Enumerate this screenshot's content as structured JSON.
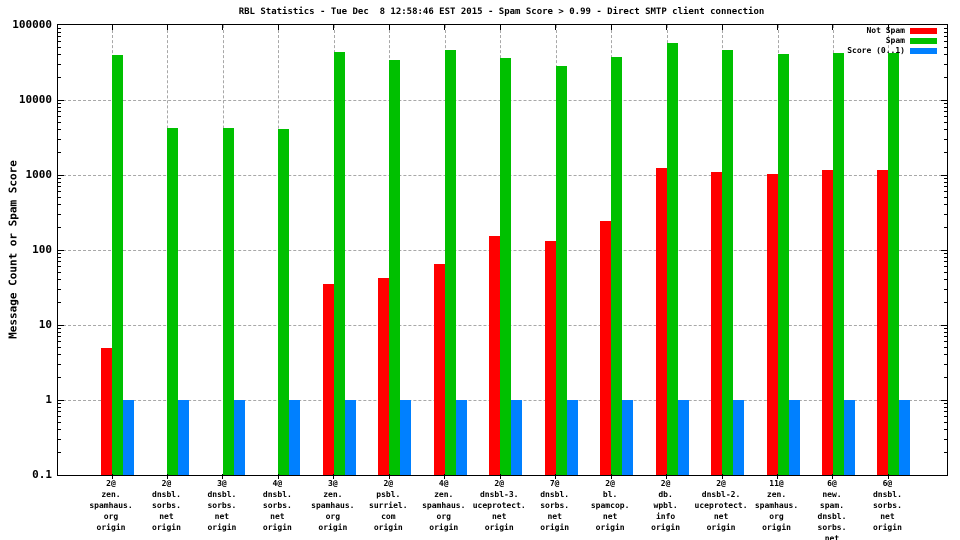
{
  "title": "RBL Statistics - Tue Dec  8 12:58:46 EST 2015 - Spam Score > 0.99 - Direct SMTP client connection",
  "chart_data": {
    "type": "bar",
    "title": "RBL Statistics - Tue Dec  8 12:58:46 EST 2015 - Spam Score > 0.99 - Direct SMTP client connection",
    "ylabel": "Message Count or Spam Score",
    "xlabel": "",
    "yscale": "log",
    "ylim": [
      0.1,
      100000
    ],
    "grid": true,
    "legend_position": "top-right",
    "yticks": [
      {
        "label": "100000",
        "value": 100000
      },
      {
        "label": "10000",
        "value": 10000
      },
      {
        "label": "1000",
        "value": 1000
      },
      {
        "label": "100",
        "value": 100
      },
      {
        "label": "10",
        "value": 10
      },
      {
        "label": "1",
        "value": 1
      },
      {
        "label": "0.1",
        "value": 0.1
      }
    ],
    "categories": [
      [
        "2@",
        "zen.",
        "spamhaus.",
        "org",
        "origin"
      ],
      [
        "2@",
        "dnsbl.",
        "sorbs.",
        "net",
        "origin"
      ],
      [
        "3@",
        "dnsbl.",
        "sorbs.",
        "net",
        "origin"
      ],
      [
        "4@",
        "dnsbl.",
        "sorbs.",
        "net",
        "origin"
      ],
      [
        "3@",
        "zen.",
        "spamhaus.",
        "org",
        "origin"
      ],
      [
        "2@",
        "psbl.",
        "surriel.",
        "com",
        "origin"
      ],
      [
        "4@",
        "zen.",
        "spamhaus.",
        "org",
        "origin"
      ],
      [
        "2@",
        "dnsbl-3.",
        "uceprotect.",
        "net",
        "origin"
      ],
      [
        "7@",
        "dnsbl.",
        "sorbs.",
        "net",
        "origin"
      ],
      [
        "2@",
        "bl.",
        "spamcop.",
        "net",
        "origin"
      ],
      [
        "2@",
        "db.",
        "wpbl.",
        "info",
        "origin"
      ],
      [
        "2@",
        "dnsbl-2.",
        "uceprotect.",
        "net",
        "origin"
      ],
      [
        "11@",
        "zen.",
        "spamhaus.",
        "org",
        "origin"
      ],
      [
        "6@",
        "new.",
        "spam.",
        "dnsbl.",
        "sorbs.",
        "net",
        "origin"
      ],
      [
        "6@",
        "dnsbl.",
        "sorbs.",
        "net",
        "origin"
      ]
    ],
    "series": [
      {
        "name": "Not Spam",
        "color": "#ff0000",
        "values": [
          5,
          0,
          0,
          0,
          35,
          42,
          65,
          155,
          130,
          245,
          1250,
          1080,
          1030,
          1180,
          1150
        ]
      },
      {
        "name": "Spam",
        "color": "#00c000",
        "values": [
          40000,
          4200,
          4200,
          4100,
          43000,
          34000,
          46000,
          36000,
          28500,
          37000,
          57000,
          46000,
          41500,
          42000,
          42000
        ]
      },
      {
        "name": "Score (0..1)",
        "color": "#0080ff",
        "values": [
          1,
          1,
          1,
          1,
          1,
          1,
          1,
          1,
          1,
          1,
          1,
          1,
          1,
          1,
          1
        ]
      }
    ]
  },
  "colors": {
    "not_spam": "#ff0000",
    "spam": "#00c000",
    "score": "#0080ff",
    "grid": "#a8a8a8",
    "axis": "#000000",
    "background": "#ffffff"
  }
}
